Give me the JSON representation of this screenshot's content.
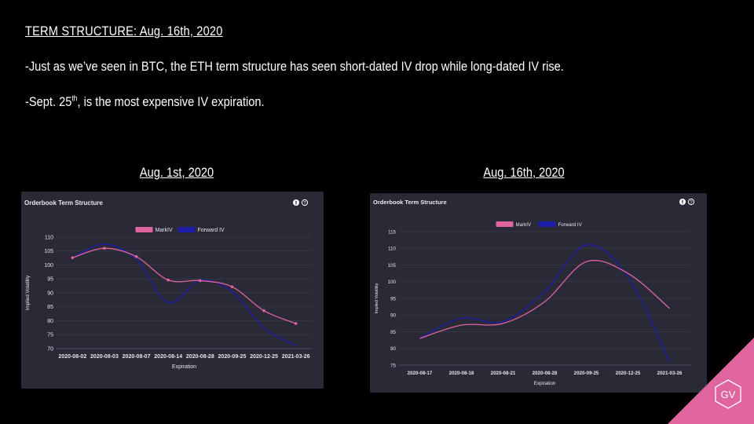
{
  "slide": {
    "title": "TERM STRUCTURE: Aug. 16th, 2020",
    "bullet1": "-Just as we’ve seen in BTC, the ETH term structure has seen short-dated IV drop while long-dated IV rise.",
    "bullet2_prefix": "-Sept. 25",
    "bullet2_sup": "th",
    "bullet2_suffix": ", is the most expensive IV expiration.",
    "logo_text": "GV"
  },
  "panels": [
    {
      "heading": "Aug. 1st, 2020",
      "title": "Orderbook Term Structure"
    },
    {
      "heading": "Aug. 16th, 2020",
      "title": "Orderbook Term Structure"
    }
  ],
  "colors": {
    "mark_iv": "#e0649e",
    "forward_iv": "#1c1ca8",
    "panel_bg": "#2a2a36",
    "grid": "#3c3c4a",
    "logo": "#e0649e"
  },
  "chart_data": [
    {
      "type": "line",
      "title": "Orderbook Term Structure",
      "xlabel": "Expiration",
      "ylabel": "Implied Volatility",
      "categories": [
        "2020-08-02",
        "2020-08-03",
        "2020-08-07",
        "2020-08-14",
        "2020-08-28",
        "2020-09-25",
        "2020-12-25",
        "2021-03-26"
      ],
      "ylim": [
        70,
        110
      ],
      "yticks": [
        70,
        75,
        80,
        85,
        90,
        95,
        100,
        105,
        110
      ],
      "legend": "top-center",
      "grid": true,
      "series": [
        {
          "name": "MarkIV",
          "values": [
            102.6,
            106,
            103,
            94.6,
            94.4,
            92.2,
            83.6,
            79
          ]
        },
        {
          "name": "Forward IV",
          "values": [
            102.6,
            107.5,
            102,
            86.5,
            94.5,
            90.5,
            77.5,
            71
          ]
        }
      ]
    },
    {
      "type": "line",
      "title": "Orderbook Term Structure",
      "xlabel": "Expiration",
      "ylabel": "Implied Volatility",
      "categories": [
        "2020-08-17",
        "2020-08-18",
        "2020-08-21",
        "2020-08-28",
        "2020-09-25",
        "2020-12-25",
        "2021-03-26"
      ],
      "ylim": [
        75,
        115
      ],
      "yticks": [
        75,
        80,
        85,
        90,
        95,
        100,
        105,
        110,
        115
      ],
      "legend": "top-center",
      "grid": true,
      "series": [
        {
          "name": "MarkIV",
          "values": [
            83,
            87,
            87.5,
            94,
            106,
            102.5,
            92
          ]
        },
        {
          "name": "Forward IV",
          "values": [
            83,
            89,
            88,
            97,
            111,
            101.5,
            76
          ]
        }
      ]
    }
  ]
}
